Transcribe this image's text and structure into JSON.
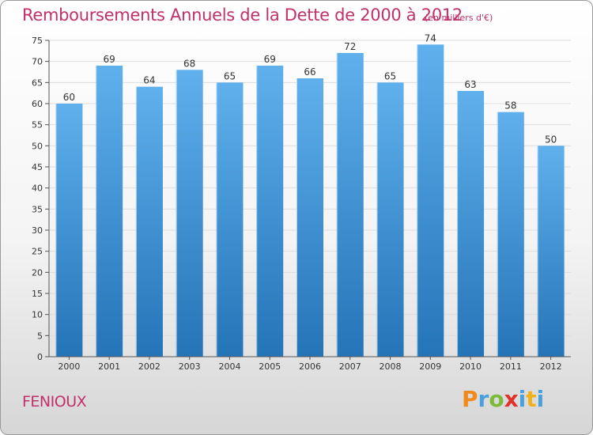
{
  "header": {
    "title": "Remboursements Annuels de la Dette de 2000 à 2012",
    "unit_note": "(en milliers d'€)"
  },
  "footer": {
    "city": "FENIOUX",
    "logo_text": "Proxiti",
    "logo_colors": [
      "#f08a1c",
      "#4aa0dc",
      "#7cbb3a",
      "#e0312a",
      "#4aa0dc",
      "#f0b21c",
      "#4aa0dc"
    ]
  },
  "colors": {
    "title": "#c0306a",
    "bar_top": "#5fb0ec",
    "bar_bottom": "#2474b8",
    "axis": "#555555",
    "grid": "#dddddd"
  },
  "chart_data": {
    "type": "bar",
    "title": "Remboursements Annuels de la Dette de 2000 à 2012",
    "ylabel": "",
    "xlabel": "",
    "ylim": [
      0,
      75
    ],
    "yticks": [
      0,
      5,
      10,
      15,
      20,
      25,
      30,
      35,
      40,
      45,
      50,
      55,
      60,
      65,
      70,
      75
    ],
    "grid": true,
    "categories": [
      "2000",
      "2001",
      "2002",
      "2003",
      "2004",
      "2005",
      "2006",
      "2007",
      "2008",
      "2009",
      "2010",
      "2011",
      "2012"
    ],
    "values": [
      60,
      69,
      64,
      68,
      65,
      69,
      66,
      72,
      65,
      74,
      63,
      58,
      50
    ]
  }
}
